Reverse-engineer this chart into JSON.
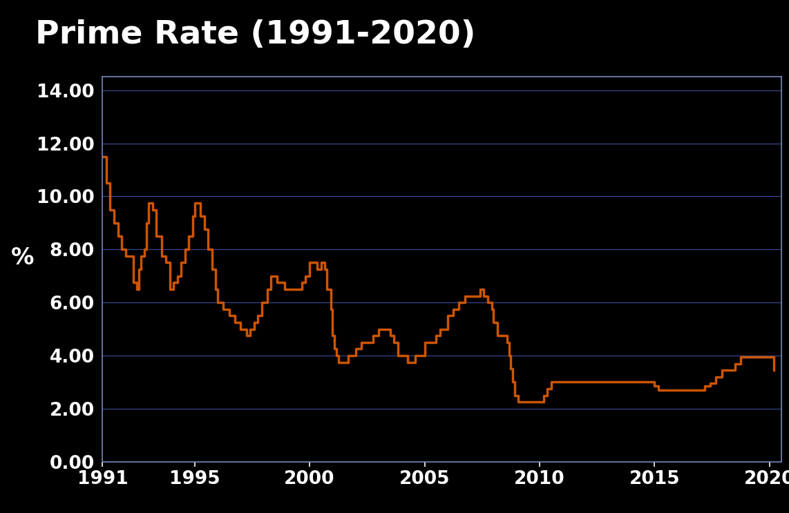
{
  "title": "Prime Rate (1991-2020)",
  "ylabel": "%",
  "background_color": "#000000",
  "plot_bg_color": "#000000",
  "line_color": "#CC5500",
  "line_width": 2.5,
  "title_fontsize": 34,
  "tick_fontsize": 19,
  "ylabel_fontsize": 24,
  "title_color": "#ffffff",
  "tick_color": "#ffffff",
  "grid_color": "#4455aa",
  "spine_color": "#7788bb",
  "orange_bar_color": "#CC5500",
  "header_color": "#111111",
  "xlim": [
    1991,
    2020.5
  ],
  "ylim": [
    0.0,
    14.5
  ],
  "yticks": [
    0.0,
    2.0,
    4.0,
    6.0,
    8.0,
    10.0,
    12.0,
    14.0
  ],
  "xticks": [
    1991,
    1995,
    2000,
    2005,
    2010,
    2015,
    2020
  ],
  "data": [
    [
      1991.0,
      11.5
    ],
    [
      1991.17,
      10.5
    ],
    [
      1991.33,
      9.5
    ],
    [
      1991.5,
      9.0
    ],
    [
      1991.67,
      8.5
    ],
    [
      1991.83,
      8.0
    ],
    [
      1992.0,
      7.75
    ],
    [
      1992.33,
      6.75
    ],
    [
      1992.5,
      6.5
    ],
    [
      1992.58,
      7.25
    ],
    [
      1992.67,
      7.75
    ],
    [
      1992.83,
      8.0
    ],
    [
      1992.92,
      9.0
    ],
    [
      1993.0,
      9.75
    ],
    [
      1993.17,
      9.5
    ],
    [
      1993.33,
      8.5
    ],
    [
      1993.58,
      7.75
    ],
    [
      1993.75,
      7.5
    ],
    [
      1993.92,
      6.5
    ],
    [
      1994.08,
      6.75
    ],
    [
      1994.25,
      7.0
    ],
    [
      1994.42,
      7.5
    ],
    [
      1994.58,
      8.0
    ],
    [
      1994.75,
      8.5
    ],
    [
      1994.92,
      9.25
    ],
    [
      1995.0,
      9.75
    ],
    [
      1995.25,
      9.25
    ],
    [
      1995.42,
      8.75
    ],
    [
      1995.58,
      8.0
    ],
    [
      1995.75,
      7.25
    ],
    [
      1995.92,
      6.5
    ],
    [
      1996.0,
      6.0
    ],
    [
      1996.25,
      5.75
    ],
    [
      1996.5,
      5.5
    ],
    [
      1996.75,
      5.25
    ],
    [
      1997.0,
      5.0
    ],
    [
      1997.25,
      4.75
    ],
    [
      1997.42,
      5.0
    ],
    [
      1997.58,
      5.25
    ],
    [
      1997.75,
      5.5
    ],
    [
      1997.92,
      6.0
    ],
    [
      1998.17,
      6.5
    ],
    [
      1998.33,
      7.0
    ],
    [
      1998.5,
      7.0
    ],
    [
      1998.58,
      6.75
    ],
    [
      1998.75,
      6.75
    ],
    [
      1998.92,
      6.5
    ],
    [
      1999.0,
      6.5
    ],
    [
      1999.25,
      6.5
    ],
    [
      1999.5,
      6.5
    ],
    [
      1999.67,
      6.75
    ],
    [
      1999.83,
      7.0
    ],
    [
      2000.0,
      7.5
    ],
    [
      2000.17,
      7.5
    ],
    [
      2000.33,
      7.25
    ],
    [
      2000.5,
      7.5
    ],
    [
      2000.67,
      7.25
    ],
    [
      2000.75,
      6.5
    ],
    [
      2000.92,
      5.75
    ],
    [
      2001.0,
      4.75
    ],
    [
      2001.08,
      4.25
    ],
    [
      2001.17,
      4.0
    ],
    [
      2001.25,
      3.75
    ],
    [
      2001.5,
      3.75
    ],
    [
      2001.67,
      4.0
    ],
    [
      2001.83,
      4.0
    ],
    [
      2002.0,
      4.25
    ],
    [
      2002.25,
      4.5
    ],
    [
      2002.5,
      4.5
    ],
    [
      2002.75,
      4.75
    ],
    [
      2003.0,
      5.0
    ],
    [
      2003.25,
      5.0
    ],
    [
      2003.5,
      4.75
    ],
    [
      2003.67,
      4.5
    ],
    [
      2003.83,
      4.0
    ],
    [
      2004.0,
      4.0
    ],
    [
      2004.25,
      3.75
    ],
    [
      2004.42,
      3.75
    ],
    [
      2004.58,
      4.0
    ],
    [
      2004.75,
      4.0
    ],
    [
      2005.0,
      4.5
    ],
    [
      2005.25,
      4.5
    ],
    [
      2005.5,
      4.75
    ],
    [
      2005.67,
      5.0
    ],
    [
      2005.83,
      5.0
    ],
    [
      2006.0,
      5.5
    ],
    [
      2006.25,
      5.75
    ],
    [
      2006.5,
      6.0
    ],
    [
      2006.75,
      6.25
    ],
    [
      2007.0,
      6.25
    ],
    [
      2007.25,
      6.25
    ],
    [
      2007.42,
      6.5
    ],
    [
      2007.5,
      6.5
    ],
    [
      2007.58,
      6.25
    ],
    [
      2007.75,
      6.0
    ],
    [
      2007.92,
      5.75
    ],
    [
      2008.0,
      5.25
    ],
    [
      2008.17,
      4.75
    ],
    [
      2008.33,
      4.75
    ],
    [
      2008.5,
      4.75
    ],
    [
      2008.58,
      4.5
    ],
    [
      2008.67,
      4.0
    ],
    [
      2008.75,
      3.5
    ],
    [
      2008.83,
      3.0
    ],
    [
      2008.92,
      2.5
    ],
    [
      2009.0,
      2.5
    ],
    [
      2009.08,
      2.25
    ],
    [
      2009.25,
      2.25
    ],
    [
      2009.5,
      2.25
    ],
    [
      2010.0,
      2.25
    ],
    [
      2010.17,
      2.5
    ],
    [
      2010.33,
      2.75
    ],
    [
      2010.5,
      3.0
    ],
    [
      2011.0,
      3.0
    ],
    [
      2012.0,
      3.0
    ],
    [
      2013.0,
      3.0
    ],
    [
      2014.0,
      3.0
    ],
    [
      2014.92,
      3.0
    ],
    [
      2015.0,
      2.85
    ],
    [
      2015.17,
      2.7
    ],
    [
      2015.5,
      2.7
    ],
    [
      2016.0,
      2.7
    ],
    [
      2016.5,
      2.7
    ],
    [
      2017.0,
      2.7
    ],
    [
      2017.17,
      2.85
    ],
    [
      2017.42,
      2.95
    ],
    [
      2017.67,
      3.2
    ],
    [
      2017.92,
      3.45
    ],
    [
      2018.0,
      3.45
    ],
    [
      2018.25,
      3.45
    ],
    [
      2018.5,
      3.7
    ],
    [
      2018.75,
      3.95
    ],
    [
      2019.0,
      3.95
    ],
    [
      2019.5,
      3.95
    ],
    [
      2020.0,
      3.95
    ],
    [
      2020.17,
      3.45
    ]
  ]
}
